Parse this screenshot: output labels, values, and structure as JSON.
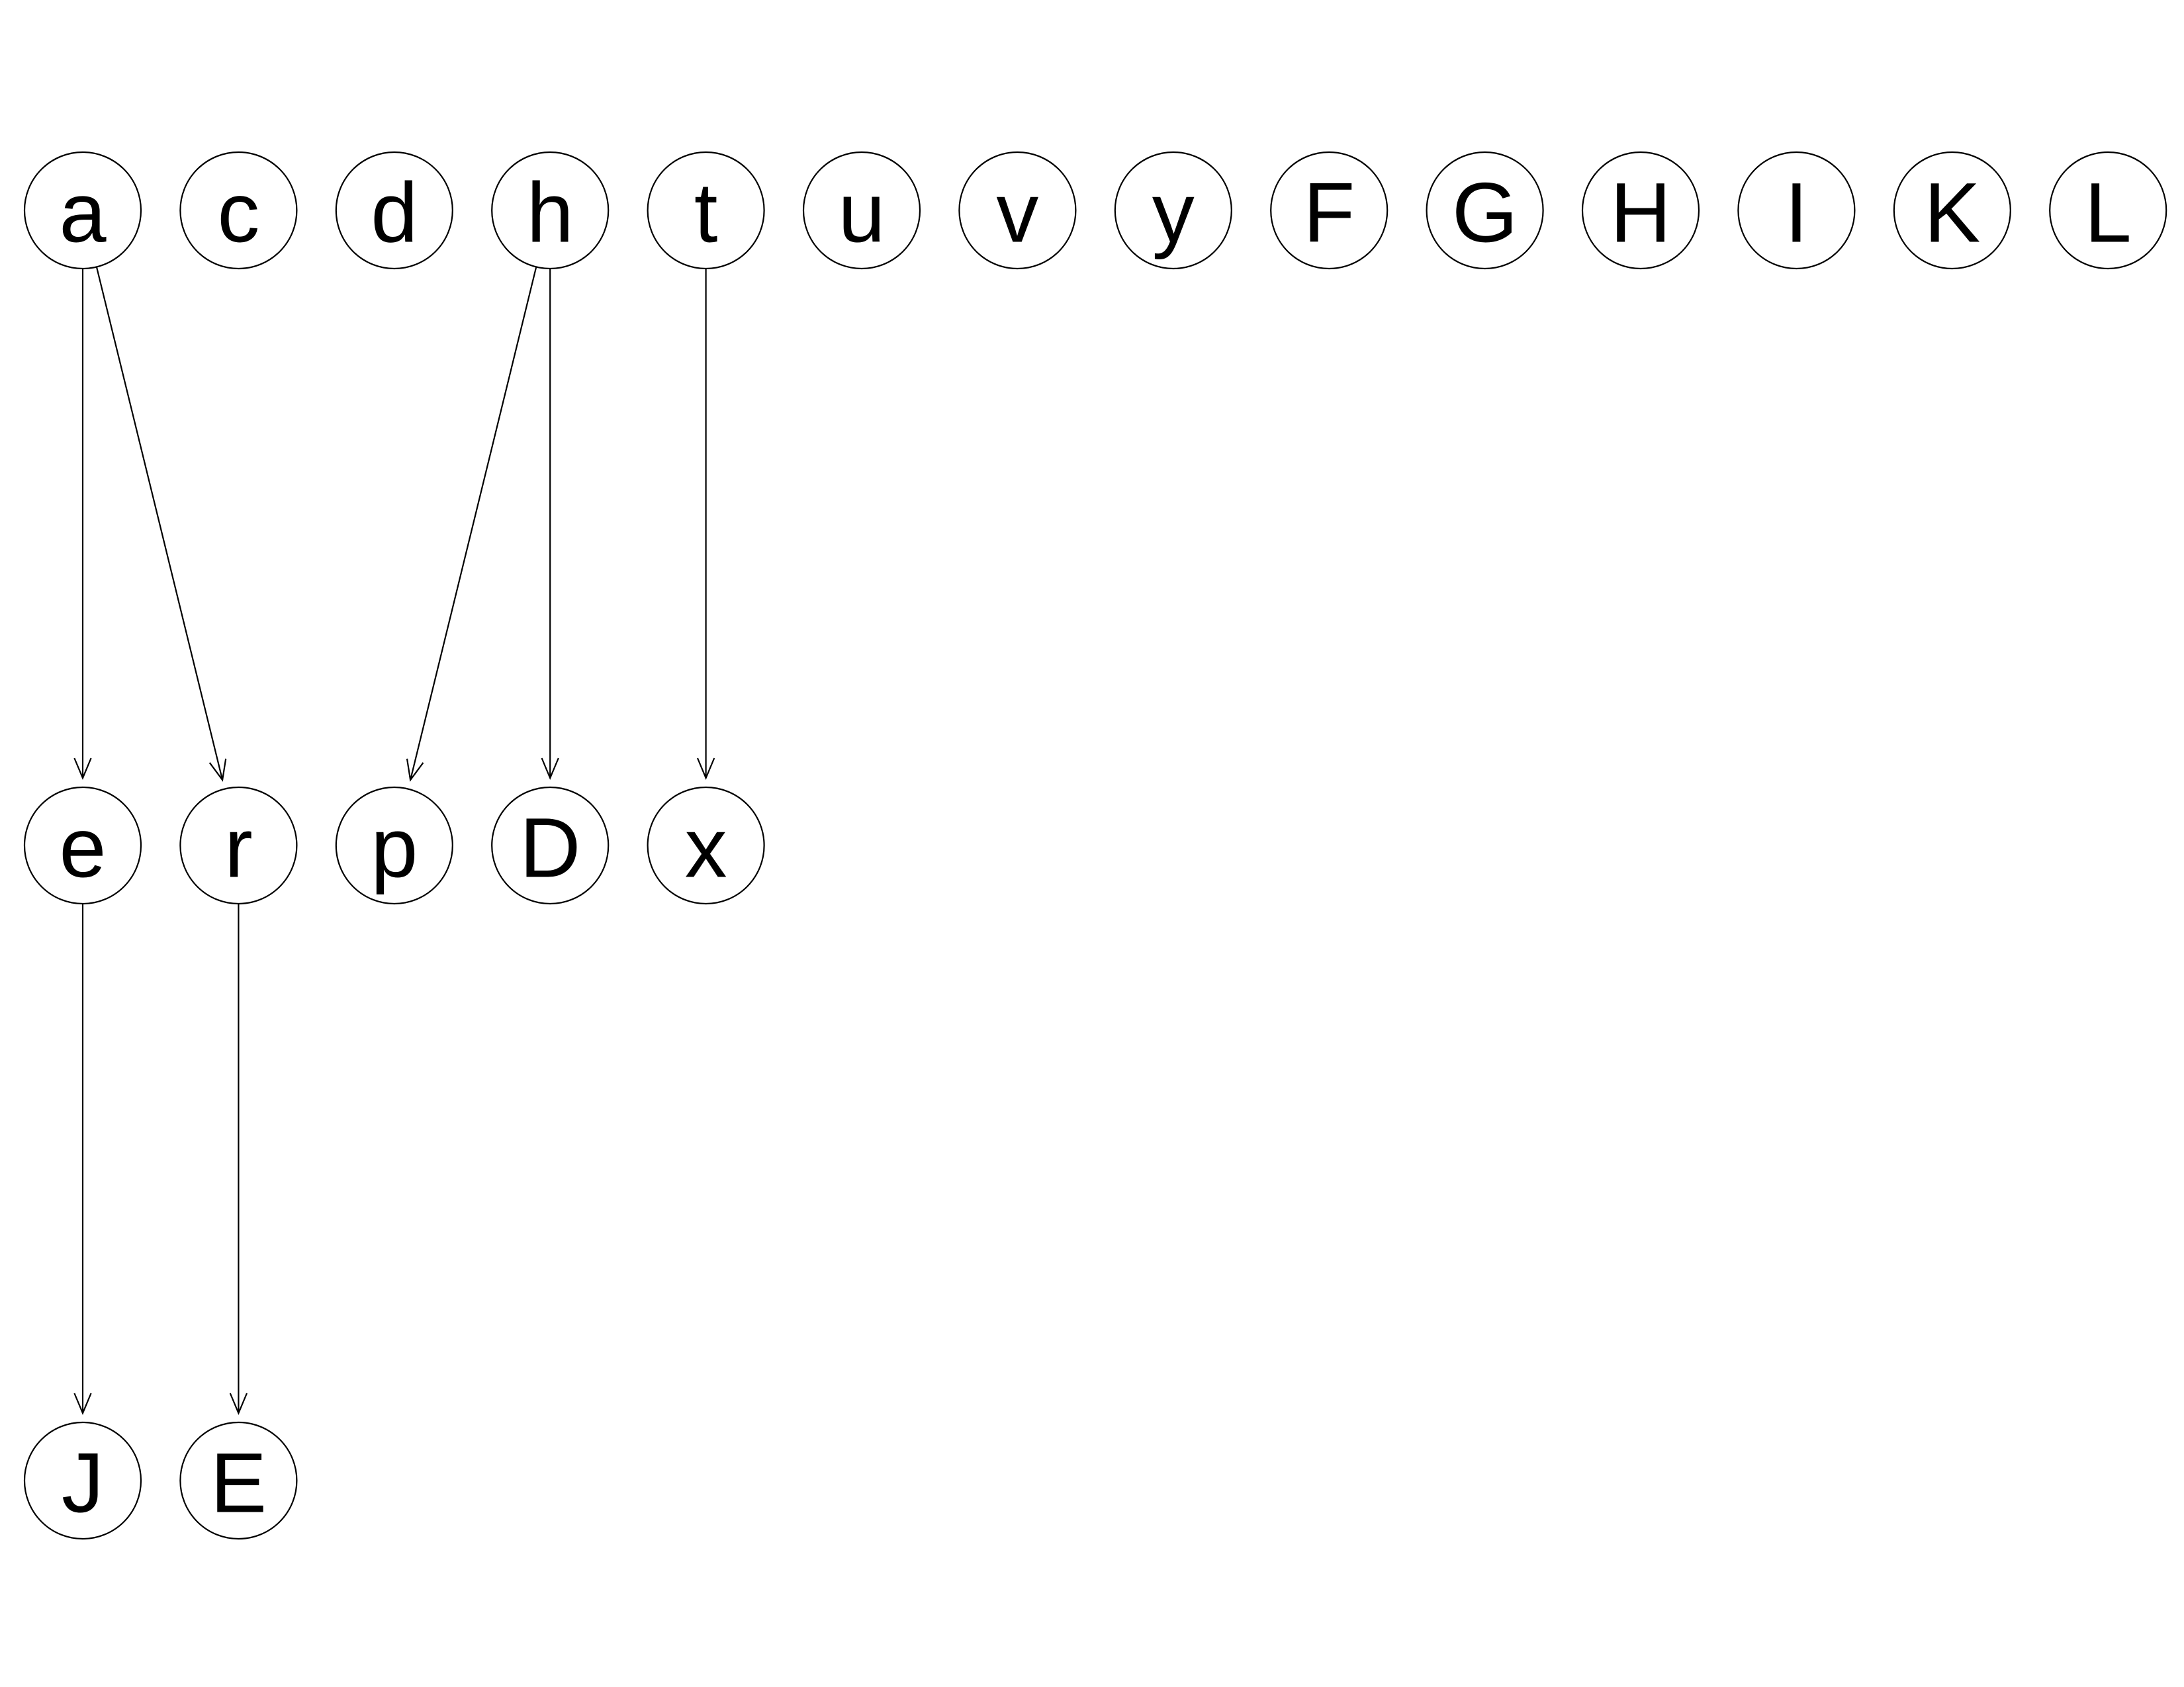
{
  "graph": {
    "nodes": [
      {
        "id": "a",
        "label": "a"
      },
      {
        "id": "c",
        "label": "c"
      },
      {
        "id": "d",
        "label": "d"
      },
      {
        "id": "h",
        "label": "h"
      },
      {
        "id": "t",
        "label": "t"
      },
      {
        "id": "u",
        "label": "u"
      },
      {
        "id": "v",
        "label": "v"
      },
      {
        "id": "y",
        "label": "y"
      },
      {
        "id": "F",
        "label": "F"
      },
      {
        "id": "G",
        "label": "G"
      },
      {
        "id": "H",
        "label": "H"
      },
      {
        "id": "I",
        "label": "I"
      },
      {
        "id": "K",
        "label": "K"
      },
      {
        "id": "L",
        "label": "L"
      },
      {
        "id": "e",
        "label": "e"
      },
      {
        "id": "r",
        "label": "r"
      },
      {
        "id": "p",
        "label": "p"
      },
      {
        "id": "D",
        "label": "D"
      },
      {
        "id": "x",
        "label": "x"
      },
      {
        "id": "J",
        "label": "J"
      },
      {
        "id": "E",
        "label": "E"
      }
    ],
    "edges": [
      {
        "from": "a",
        "to": "e"
      },
      {
        "from": "a",
        "to": "r"
      },
      {
        "from": "h",
        "to": "p"
      },
      {
        "from": "h",
        "to": "D"
      },
      {
        "from": "t",
        "to": "x"
      },
      {
        "from": "e",
        "to": "J"
      },
      {
        "from": "r",
        "to": "E"
      }
    ]
  }
}
